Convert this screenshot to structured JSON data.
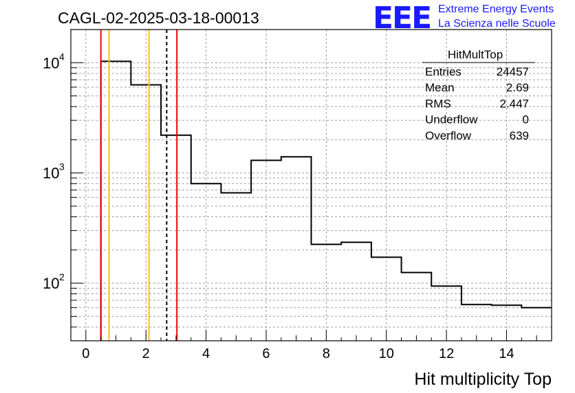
{
  "title": "CAGL-02-2025-03-18-00013",
  "logo": {
    "text": "EEE",
    "line1": "Extreme Energy Events",
    "line2": "La Scienza nelle Scuole"
  },
  "colors": {
    "accent_blue": "#1a1aff",
    "red_line": "#e8000b",
    "orange_line": "#ffc000",
    "hist": "#000000",
    "grid": "#9a9a9a"
  },
  "stats": {
    "name": "HitMultTop",
    "rows": [
      {
        "label": "Entries",
        "value": "24457"
      },
      {
        "label": "Mean",
        "value": "2.69"
      },
      {
        "label": "RMS",
        "value": "2.447"
      },
      {
        "label": "Underflow",
        "value": "0"
      },
      {
        "label": "Overflow",
        "value": "639"
      }
    ]
  },
  "chart_data": {
    "type": "bar",
    "histogram": true,
    "xlabel": "Hit multiplicity Top",
    "xlim": [
      -0.5,
      15.5
    ],
    "ylim": [
      30,
      20000
    ],
    "yscale": "log",
    "grid": true,
    "x_ticks": [
      0,
      2,
      4,
      6,
      8,
      10,
      12,
      14
    ],
    "x_tick_labels": [
      "0",
      "2",
      "4",
      "6",
      "8",
      "10",
      "12",
      "14"
    ],
    "y_ticks": [
      {
        "value": 100,
        "base": "10",
        "exp": "2"
      },
      {
        "value": 1000,
        "base": "10",
        "exp": "3"
      },
      {
        "value": 10000,
        "base": "10",
        "exp": "4"
      }
    ],
    "bins": [
      {
        "lo": 0.5,
        "hi": 1.5,
        "value": 10300
      },
      {
        "lo": 1.5,
        "hi": 2.5,
        "value": 6300
      },
      {
        "lo": 2.5,
        "hi": 3.5,
        "value": 2200
      },
      {
        "lo": 3.5,
        "hi": 4.5,
        "value": 800
      },
      {
        "lo": 4.5,
        "hi": 5.5,
        "value": 660
      },
      {
        "lo": 5.5,
        "hi": 6.5,
        "value": 1300
      },
      {
        "lo": 6.5,
        "hi": 7.5,
        "value": 1400
      },
      {
        "lo": 7.5,
        "hi": 8.5,
        "value": 225
      },
      {
        "lo": 8.5,
        "hi": 9.5,
        "value": 235
      },
      {
        "lo": 9.5,
        "hi": 10.5,
        "value": 172
      },
      {
        "lo": 10.5,
        "hi": 11.5,
        "value": 125
      },
      {
        "lo": 11.5,
        "hi": 12.5,
        "value": 94
      },
      {
        "lo": 12.5,
        "hi": 13.5,
        "value": 64
      },
      {
        "lo": 13.5,
        "hi": 14.5,
        "value": 63
      },
      {
        "lo": 14.5,
        "hi": 15.5,
        "value": 60
      }
    ],
    "markers": [
      {
        "x": 0.5,
        "color": "#e8000b",
        "style": "solid"
      },
      {
        "x": 0.77,
        "color": "#ffc000",
        "style": "solid"
      },
      {
        "x": 2.1,
        "color": "#ffc000",
        "style": "solid"
      },
      {
        "x": 2.69,
        "color": "#000000",
        "style": "dashed"
      },
      {
        "x": 3.03,
        "color": "#e8000b",
        "style": "solid"
      }
    ]
  }
}
